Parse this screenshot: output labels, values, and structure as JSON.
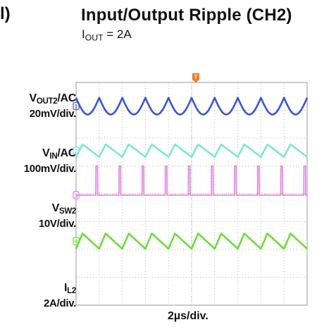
{
  "figure": {
    "tag": "l)",
    "title": "Input/Output Ripple (CH2)",
    "subtitle_main": "I",
    "subtitle_sub": "OUT",
    "subtitle_rest": " = 2A"
  },
  "chart_data": {
    "type": "line",
    "title": "Input/Output Ripple (CH2)",
    "subtitle": "IOUT = 2A",
    "xlabel": "2µs/div.",
    "x_unit": "µs",
    "x_per_div": 2,
    "x_divisions": 10,
    "y_divisions": 8,
    "grid": true,
    "trigger_marker": "T",
    "series": [
      {
        "name": "VOUT2/AC",
        "name_main": "V",
        "name_sub": "OUT2",
        "name_rest": "/AC",
        "scale": "20mV/div.",
        "channel_marker": "1",
        "shape": "cusp-ripple",
        "color": "#3d55d6",
        "cycles": 10,
        "amplitude_div": 0.6,
        "offset_div": 3.15
      },
      {
        "name": "VIN/AC",
        "name_main": "V",
        "name_sub": "IN",
        "name_rest": "/AC",
        "scale": "100mV/div.",
        "channel_marker": "2",
        "shape": "sawtooth",
        "color": "#7ee6d4",
        "cycles": 10,
        "amplitude_div": 0.45,
        "offset_div": 1.55
      },
      {
        "name": "VSW2",
        "name_main": "V",
        "name_sub": "SW2",
        "name_rest": "",
        "scale": "10V/div.",
        "channel_marker": "3",
        "shape": "pulse",
        "color": "#e07ee0",
        "cycles": 10,
        "amplitude_div": 1.05,
        "offset_div": -0.05
      },
      {
        "name": "IL2",
        "name_main": "I",
        "name_sub": "L2",
        "name_rest": "",
        "scale": "2A/div.",
        "channel_marker": "4",
        "shape": "sawtooth",
        "color": "#6fdb3a",
        "cycles": 10,
        "amplitude_div": 0.55,
        "offset_div": -1.7
      }
    ]
  }
}
